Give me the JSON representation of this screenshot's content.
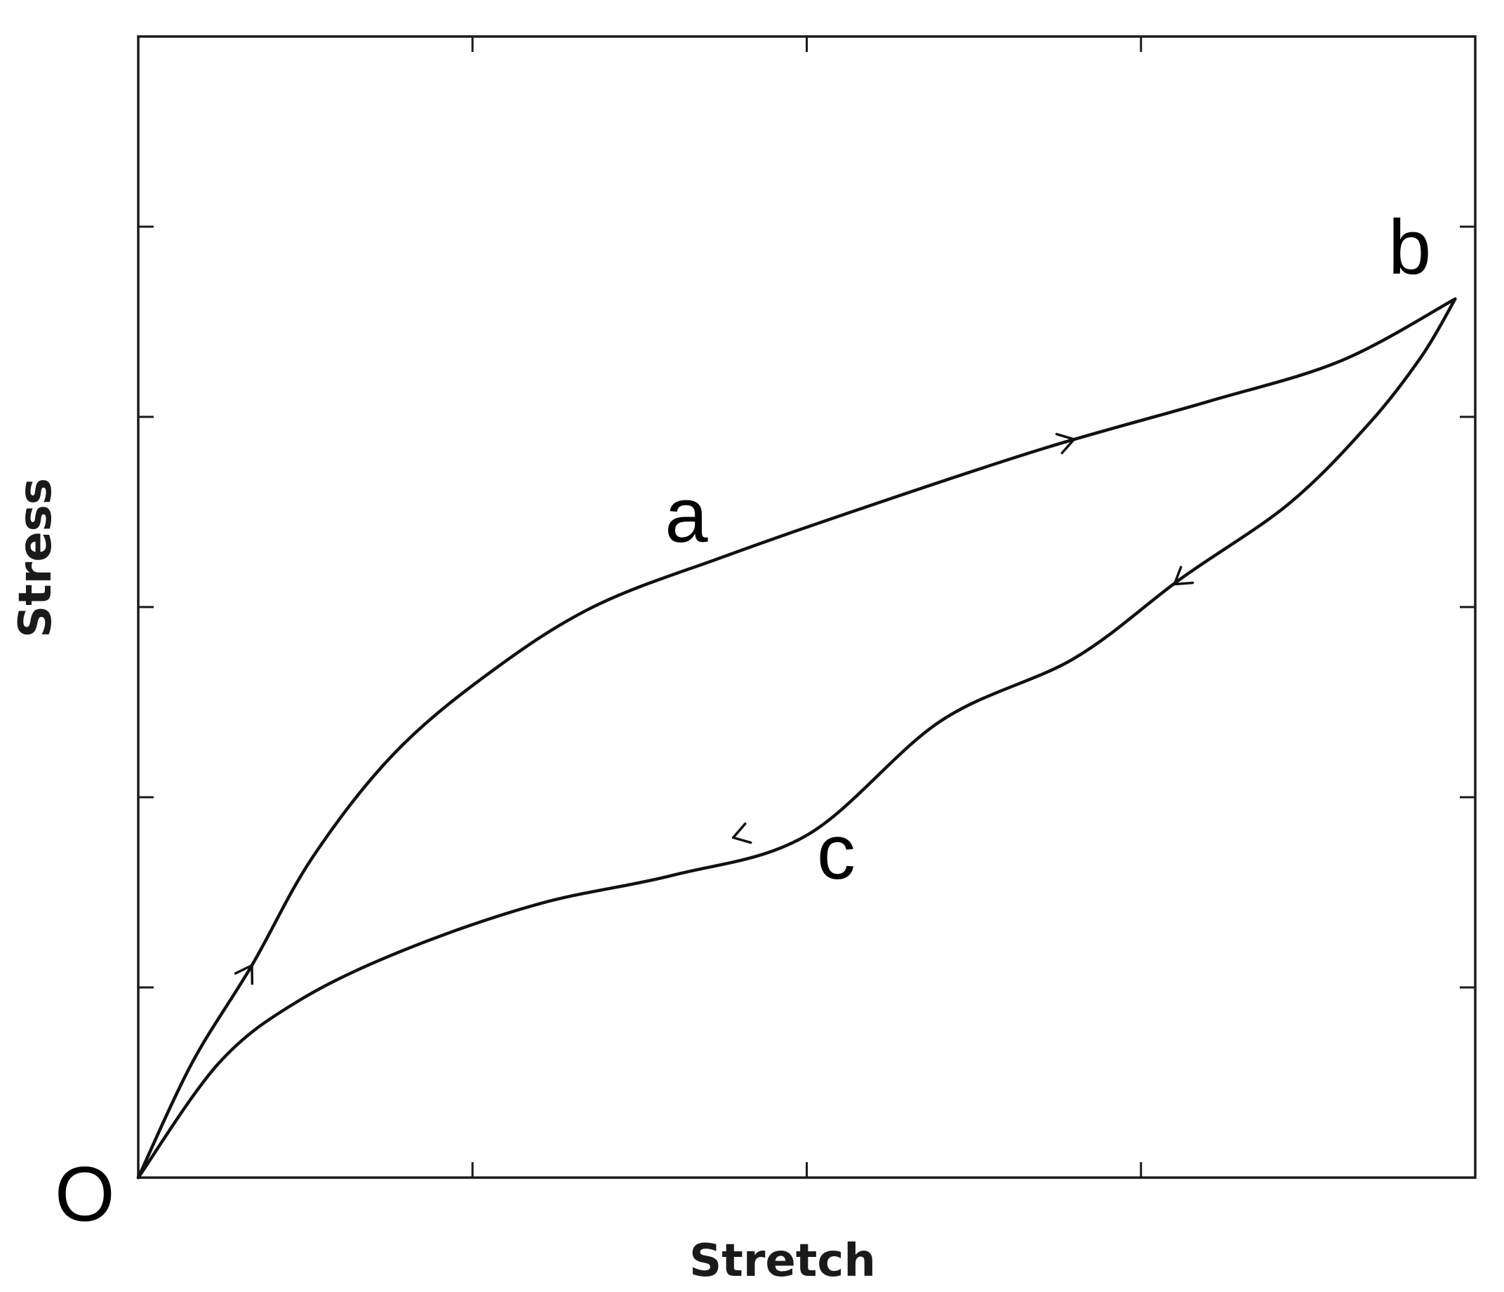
{
  "chart_data": {
    "type": "line",
    "title": "",
    "xlabel": "Stretch",
    "ylabel": "Stress",
    "xlim": [
      0,
      1
    ],
    "ylim": [
      0,
      1
    ],
    "grid": false,
    "legend": "none",
    "x_ticks": 4,
    "y_ticks": 6,
    "series": [
      {
        "label": "a",
        "direction": "loading",
        "x": [
          0,
          0.04,
          0.085,
          0.13,
          0.19,
          0.26,
          0.34,
          0.44,
          0.55,
          0.68,
          0.8,
          0.9,
          0.985
        ],
        "y": [
          0,
          0.1,
          0.186,
          0.28,
          0.37,
          0.44,
          0.5,
          0.545,
          0.59,
          0.64,
          0.68,
          0.716,
          0.77
        ]
      },
      {
        "label": "c",
        "direction": "unloading",
        "x": [
          0.985,
          0.96,
          0.92,
          0.86,
          0.78,
          0.7,
          0.6,
          0.5,
          0.4,
          0.3,
          0.2,
          0.12,
          0.06,
          0
        ],
        "y": [
          0.77,
          0.72,
          0.66,
          0.59,
          0.525,
          0.455,
          0.4,
          0.3,
          0.265,
          0.24,
          0.2,
          0.155,
          0.1,
          0
        ]
      }
    ],
    "arrows": [
      {
        "series": "a",
        "x": 0.085,
        "y": 0.186
      },
      {
        "series": "a",
        "x": 0.7,
        "y": 0.647
      },
      {
        "series": "c",
        "x": 0.775,
        "y": 0.52
      },
      {
        "series": "c",
        "x": 0.445,
        "y": 0.298
      }
    ],
    "annotations": [
      {
        "text": "O",
        "x": -0.04,
        "y": -0.02
      },
      {
        "text": "a",
        "x": 0.41,
        "y": 0.575
      },
      {
        "text": "b",
        "x": 0.951,
        "y": 0.81
      },
      {
        "text": "c",
        "x": 0.522,
        "y": 0.28
      }
    ]
  }
}
